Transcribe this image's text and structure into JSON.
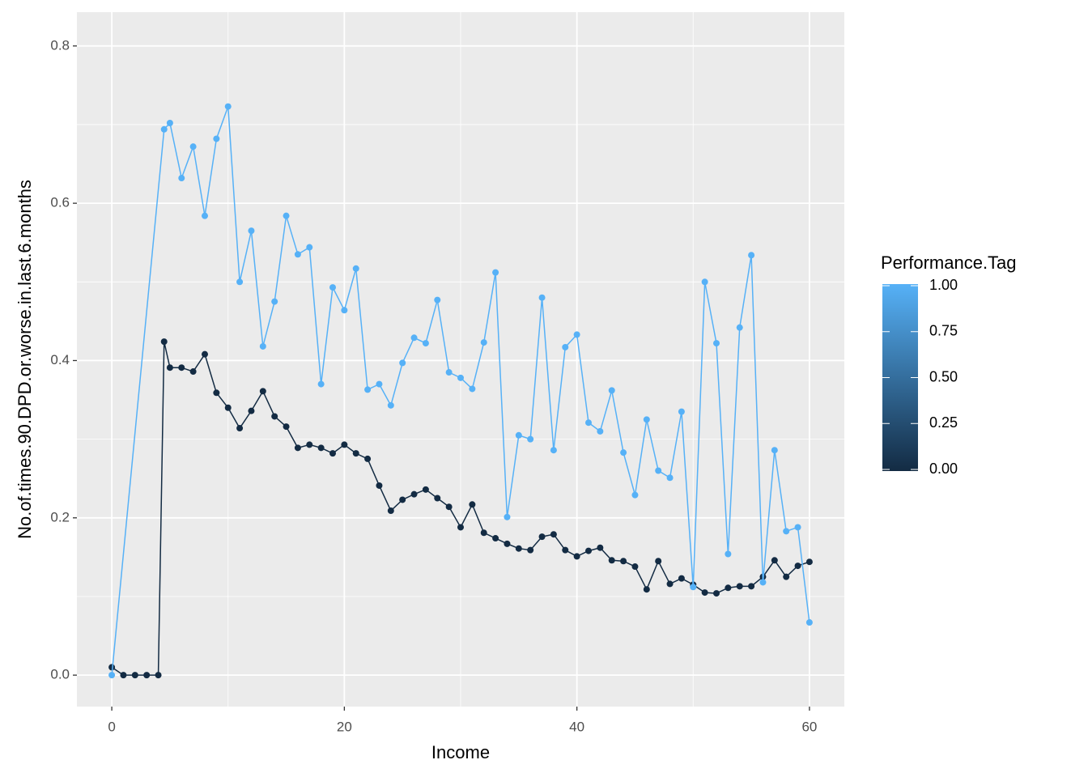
{
  "chart_data": {
    "type": "line",
    "x_label": "Income",
    "y_label": "No.of.times.90.DPD.or.worse.in.last.6.months",
    "xlim": [
      -3,
      63
    ],
    "ylim": [
      -0.04,
      0.843
    ],
    "xticks": [
      0,
      20,
      40,
      60
    ],
    "yticks": [
      {
        "value": 0,
        "label": "0.0"
      },
      0.2,
      0.4,
      0.6,
      0.8
    ],
    "x_minor_ticks": [
      10,
      30,
      50
    ],
    "y_minor_ticks": [
      0.1,
      0.3,
      0.5,
      0.7
    ],
    "grid": true,
    "legend": "right",
    "colorbar": {
      "title": "Performance.Tag",
      "lim": [
        0,
        1
      ],
      "low": "#132B43",
      "high": "#56B1F7",
      "ticks": [
        {
          "value": 0,
          "label": "0.00"
        },
        {
          "value": 0.25,
          "label": "0.25"
        },
        {
          "value": 0.5,
          "label": "0.50"
        },
        {
          "value": 0.75,
          "label": "0.75"
        },
        {
          "value": 1,
          "label": "1.00"
        }
      ]
    },
    "series": [
      {
        "color": "#132B43",
        "x": [
          0,
          1,
          2,
          3,
          4,
          4.5,
          5,
          6,
          7,
          8,
          9,
          10,
          11,
          12,
          13,
          14,
          15,
          16,
          17,
          18,
          19,
          20,
          21,
          22,
          23,
          24,
          25,
          26,
          27,
          28,
          29,
          30,
          31,
          32,
          33,
          34,
          35,
          36,
          37,
          38,
          39,
          40,
          41,
          42,
          43,
          44,
          45,
          46,
          47,
          48,
          49,
          50,
          51,
          52,
          53,
          54,
          55,
          56,
          57,
          58,
          59,
          60
        ],
        "values": [
          0.01,
          0,
          0,
          0,
          0,
          0.424,
          0.391,
          0.391,
          0.386,
          0.408,
          0.359,
          0.34,
          0.314,
          0.336,
          0.361,
          0.329,
          0.316,
          0.289,
          0.293,
          0.289,
          0.282,
          0.293,
          0.282,
          0.275,
          0.241,
          0.209,
          0.223,
          0.23,
          0.236,
          0.225,
          0.214,
          0.188,
          0.217,
          0.181,
          0.174,
          0.167,
          0.161,
          0.159,
          0.176,
          0.179,
          0.159,
          0.151,
          0.158,
          0.162,
          0.146,
          0.145,
          0.138,
          0.109,
          0.145,
          0.116,
          0.123,
          0.115,
          0.105,
          0.104,
          0.111,
          0.113,
          0.113,
          0.125,
          0.146,
          0.125,
          0.139,
          0.144
        ]
      },
      {
        "color": "#56B1F7",
        "x": [
          0,
          4.5,
          5,
          6,
          7,
          8,
          9,
          10,
          11,
          12,
          13,
          14,
          15,
          16,
          17,
          18,
          19,
          20,
          21,
          22,
          23,
          24,
          25,
          26,
          27,
          28,
          29,
          30,
          31,
          32,
          33,
          34,
          35,
          36,
          37,
          38,
          39,
          40,
          41,
          42,
          43,
          44,
          45,
          46,
          47,
          48,
          49,
          50,
          51,
          52,
          53,
          54,
          55,
          56,
          57,
          58,
          59,
          60
        ],
        "values": [
          0,
          0.694,
          0.702,
          0.632,
          0.672,
          0.584,
          0.682,
          0.723,
          0.5,
          0.565,
          0.418,
          0.475,
          0.584,
          0.535,
          0.544,
          0.37,
          0.493,
          0.464,
          0.517,
          0.363,
          0.37,
          0.343,
          0.397,
          0.429,
          0.422,
          0.477,
          0.385,
          0.378,
          0.364,
          0.423,
          0.512,
          0.201,
          0.305,
          0.3,
          0.48,
          0.286,
          0.417,
          0.433,
          0.321,
          0.31,
          0.362,
          0.283,
          0.229,
          0.325,
          0.26,
          0.251,
          0.335,
          0.112,
          0.5,
          0.422,
          0.154,
          0.442,
          0.534,
          0.118,
          0.286,
          0.183,
          0.188,
          0.067
        ]
      }
    ]
  }
}
